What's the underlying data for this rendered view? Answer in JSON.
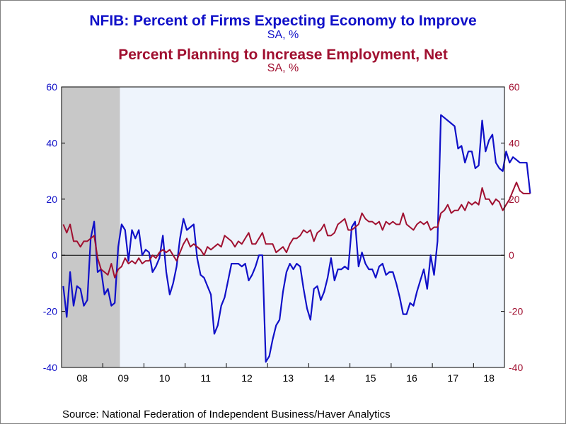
{
  "titles": {
    "line1": "NFIB: Percent of Firms Expecting Economy to Improve",
    "line1_sub": "SA, %",
    "line2": "Percent Planning to Increase Employment, Net",
    "line2_sub": "SA, %"
  },
  "source": "Source:  National Federation of Independent Business/Haver Analytics",
  "colors": {
    "series1": "#1010c8",
    "series2": "#a01030",
    "plot_bg": "#eef4fc",
    "recession": "#c8c8c8",
    "frame_bg": "#ffffff"
  },
  "chart_data": {
    "type": "line",
    "x_start": "2008-01",
    "x_end": "2018-09",
    "x_ticks": [
      "08",
      "09",
      "10",
      "11",
      "12",
      "13",
      "14",
      "15",
      "16",
      "17",
      "18"
    ],
    "left_axis": {
      "ticks": [
        "60",
        "40",
        "20",
        "0",
        "-20",
        "-40"
      ],
      "ylim": [
        -40,
        60
      ]
    },
    "right_axis": {
      "ticks": [
        "60",
        "40",
        "20",
        "0",
        "-20",
        "-40"
      ],
      "ylim": [
        -40,
        60
      ]
    },
    "recession_shading": {
      "from": "2008-01",
      "to": "2009-06"
    },
    "zero_line": true,
    "series": [
      {
        "name": "NFIB: Percent of Firms Expecting Economy to Improve",
        "axis": "left",
        "values": [
          -11,
          -22,
          -6,
          -18,
          -11,
          -12,
          -18,
          -16,
          6,
          12,
          -6,
          -5,
          -14,
          -12,
          -18,
          -17,
          3,
          11,
          9,
          -2,
          9,
          6,
          9,
          0,
          2,
          1,
          -6,
          -4,
          -1,
          7,
          -6,
          -14,
          -10,
          -4,
          6,
          13,
          9,
          10,
          11,
          -1,
          -7,
          -8,
          -11,
          -14,
          -28,
          -25,
          -18,
          -15,
          -9,
          -3,
          -3,
          -3,
          -4,
          -3,
          -9,
          -7,
          -4,
          0,
          0,
          -38,
          -36,
          -30,
          -25,
          -23,
          -13,
          -6,
          -3,
          -5,
          -3,
          -4,
          -12,
          -19,
          -23,
          -12,
          -11,
          -16,
          -13,
          -8,
          -1,
          -9,
          -5,
          -5,
          -4,
          -5,
          10,
          12,
          -4,
          1,
          -3,
          -5,
          -5,
          -8,
          -4,
          -3,
          -7,
          -6,
          -6,
          -10,
          -15,
          -21,
          -21,
          -17,
          -18,
          -13,
          -9,
          -5,
          -12,
          0,
          -7,
          5,
          50,
          49,
          48,
          47,
          46,
          38,
          39,
          33,
          37,
          37,
          31,
          32,
          48,
          37,
          41,
          43,
          33,
          31,
          30,
          37,
          33,
          35,
          34,
          33,
          33,
          33,
          22
        ]
      },
      {
        "name": "Percent Planning to Increase Employment, Net",
        "axis": "right",
        "values": [
          11,
          8,
          11,
          5,
          5,
          3,
          5,
          5,
          6,
          7,
          -1,
          -5,
          -6,
          -7,
          -3,
          -8,
          -5,
          -4,
          -1,
          -3,
          -2,
          -3,
          -1,
          -3,
          -2,
          -2,
          0,
          -1,
          1,
          2,
          1,
          2,
          0,
          -2,
          1,
          4,
          6,
          3,
          4,
          3,
          2,
          0,
          3,
          2,
          3,
          4,
          3,
          7,
          6,
          5,
          3,
          5,
          4,
          6,
          8,
          4,
          4,
          6,
          8,
          4,
          4,
          4,
          1,
          2,
          3,
          1,
          4,
          6,
          6,
          7,
          9,
          8,
          9,
          5,
          8,
          9,
          11,
          7,
          7,
          8,
          11,
          12,
          13,
          9,
          9,
          10,
          11,
          15,
          13,
          12,
          12,
          11,
          12,
          9,
          12,
          11,
          12,
          11,
          11,
          15,
          11,
          10,
          9,
          11,
          12,
          11,
          12,
          9,
          10,
          10,
          15,
          16,
          18,
          15,
          16,
          16,
          18,
          16,
          19,
          18,
          19,
          18,
          24,
          20,
          20,
          18,
          20,
          19,
          16,
          18,
          20,
          23,
          26,
          23,
          22,
          22,
          22
        ]
      }
    ]
  }
}
